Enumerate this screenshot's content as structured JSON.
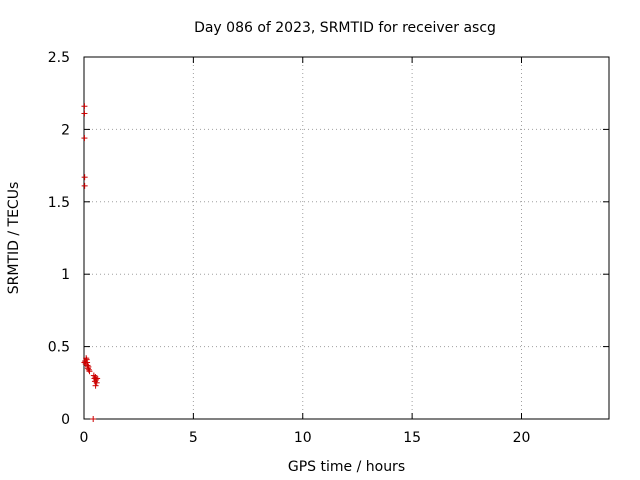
{
  "chart_data": {
    "type": "scatter",
    "title": "Day 086 of 2023, SRMTID for receiver ascg",
    "xlabel": "GPS time / hours",
    "ylabel": "SRMTID / TECUs",
    "xlim": [
      0,
      24
    ],
    "ylim": [
      0,
      2.5
    ],
    "xticks": [
      0,
      5,
      10,
      15,
      20
    ],
    "xtick_labels": [
      "0",
      "5",
      "10",
      "15",
      "20"
    ],
    "yticks": [
      0,
      0.5,
      1,
      1.5,
      2,
      2.5
    ],
    "ytick_labels": [
      "0",
      "0.5",
      "1",
      "1.5",
      "2",
      "2.5"
    ],
    "grid": true,
    "marker": "plus",
    "series": [
      {
        "color": "#cc0000",
        "points": [
          {
            "x": 0.02,
            "y": 2.16
          },
          {
            "x": 0.02,
            "y": 2.11
          },
          {
            "x": 0.02,
            "y": 1.94
          },
          {
            "x": 0.03,
            "y": 1.67
          },
          {
            "x": 0.03,
            "y": 1.61
          },
          {
            "x": 0.02,
            "y": 0.39
          },
          {
            "x": 0.05,
            "y": 0.4
          },
          {
            "x": 0.08,
            "y": 0.38
          },
          {
            "x": 0.1,
            "y": 0.42
          },
          {
            "x": 0.12,
            "y": 0.41
          },
          {
            "x": 0.14,
            "y": 0.39
          },
          {
            "x": 0.16,
            "y": 0.37
          },
          {
            "x": 0.18,
            "y": 0.35
          },
          {
            "x": 0.2,
            "y": 0.36
          },
          {
            "x": 0.22,
            "y": 0.34
          },
          {
            "x": 0.25,
            "y": 0.33
          },
          {
            "x": 0.45,
            "y": 0.3
          },
          {
            "x": 0.48,
            "y": 0.28
          },
          {
            "x": 0.5,
            "y": 0.26
          },
          {
            "x": 0.52,
            "y": 0.29
          },
          {
            "x": 0.55,
            "y": 0.27
          },
          {
            "x": 0.58,
            "y": 0.25
          },
          {
            "x": 0.6,
            "y": 0.28
          },
          {
            "x": 0.53,
            "y": 0.23
          },
          {
            "x": 0.42,
            "y": 0.0
          }
        ]
      }
    ]
  }
}
